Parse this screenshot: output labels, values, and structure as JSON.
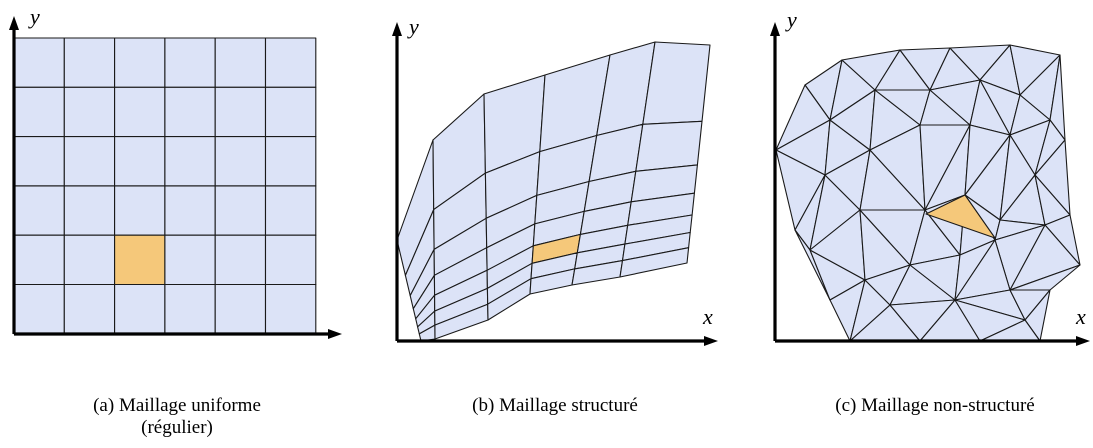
{
  "colors": {
    "mesh_fill": "#dce3f7",
    "highlight_fill": "#f5c87a",
    "edge": "#1a1a1a",
    "axis": "#000000"
  },
  "panels": [
    {
      "id": "a",
      "caption": "(a) Maillage uniforme",
      "caption_line2": "(régulier)",
      "axes": {
        "x": "",
        "y": "y"
      }
    },
    {
      "id": "b",
      "caption": "(b) Maillage structuré",
      "caption_line2": "",
      "axes": {
        "x": "x",
        "y": "y"
      }
    },
    {
      "id": "c",
      "caption": "(c) Maillage non-structuré",
      "caption_line2": "",
      "axes": {
        "x": "x",
        "y": "y"
      }
    }
  ]
}
